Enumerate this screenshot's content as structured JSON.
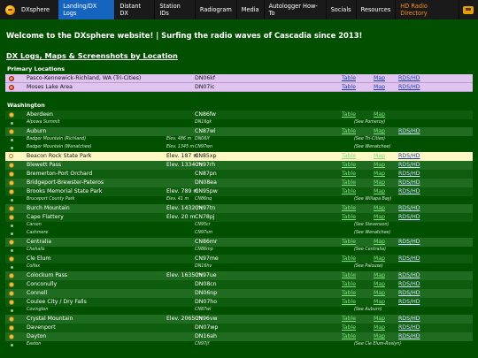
{
  "nav": {
    "brand": "DXsphere",
    "items": [
      {
        "label": "Landing/DX Logs",
        "active": true
      },
      {
        "label": "Distant DX"
      },
      {
        "label": "Station IDs"
      },
      {
        "label": "Radiogram"
      },
      {
        "label": "Media"
      },
      {
        "label": "Autologger How-To"
      },
      {
        "label": "Socials"
      },
      {
        "label": "Resources"
      },
      {
        "label": "HD Radio Directory"
      }
    ]
  },
  "welcome": "Welcome to the DXsphere website! | Surfing the radio waves of Cascadia since 2013!",
  "section_title": "DX Logs, Maps & Screenshots by Location",
  "primary": {
    "label": "Primary Locations",
    "rows": [
      {
        "name": "Pasco-Kennewick-Richland, WA (Tri-Cities)",
        "grid": "DN06kf",
        "table": "Table",
        "map": "Map",
        "rds": "RDS/HD"
      },
      {
        "name": "Moses Lake Area",
        "grid": "DN07ic",
        "table": "Table",
        "map": "Map",
        "rds": "RDS/HD"
      }
    ]
  },
  "washington": {
    "label": "Washington",
    "rows": [
      {
        "type": "big",
        "name": "Aberdeen",
        "elev": "",
        "grid": "CN86fw",
        "table": "Table",
        "map": "Map",
        "rds": ""
      },
      {
        "type": "small",
        "name": "Alpowa Summit",
        "grid": "DN16gk",
        "note": "(See Pomeroy)"
      },
      {
        "type": "big",
        "name": "Auburn",
        "elev": "",
        "grid": "CN87wl",
        "table": "Table",
        "map": "Map",
        "rds": "RDS/HD"
      },
      {
        "type": "small",
        "name": "Badger Mountain (Richland)",
        "elev": "Elev. 486 m",
        "grid": "DN06lf",
        "note": "(See Tri-Cities)"
      },
      {
        "type": "small",
        "name": "Badger Mountain (Wenatchee)",
        "elev": "Elev. 1345 m",
        "grid": "CN97wn",
        "note": "(See Wenatchee)"
      },
      {
        "type": "highlight",
        "name": "Beacon Rock State Park",
        "elev": "Elev. 187 m",
        "grid": "CN85xp",
        "table": "Table",
        "map": "Map",
        "rds": "RDS/HD"
      },
      {
        "type": "big",
        "name": "Blewett Pass",
        "elev": "Elev. 1334 m",
        "grid": "CN97rh",
        "table": "Table",
        "map": "Map",
        "rds": "RDS/HD"
      },
      {
        "type": "big",
        "name": "Bremerton-Port Orchard",
        "elev": "",
        "grid": "CN87pn",
        "table": "Table",
        "map": "Map",
        "rds": "RDS/HD"
      },
      {
        "type": "big",
        "name": "Bridgeport-Brewster-Pateros",
        "elev": "",
        "grid": "DN08ea",
        "table": "Table",
        "map": "Map",
        "rds": "RDS/HD"
      },
      {
        "type": "big",
        "name": "Brooks Memorial State Park",
        "elev": "Elev. 789 m",
        "grid": "CN95pw",
        "table": "Table",
        "map": "Map",
        "rds": "RDS/HD"
      },
      {
        "type": "small",
        "name": "Bruceport County Park",
        "elev": "Elev. 41 m",
        "grid": "CN86nq",
        "note": "(See Willapa Bay)"
      },
      {
        "type": "big",
        "name": "Burch Mountain",
        "elev": "Elev. 1432 m",
        "grid": "CN97tn",
        "table": "Table",
        "map": "Map",
        "rds": "RDS/HD"
      },
      {
        "type": "big",
        "name": "Cape Flattery",
        "elev": "Elev. 20 m",
        "grid": "CN78pj",
        "table": "Table",
        "map": "Map",
        "rds": "RDS/HD"
      },
      {
        "type": "small",
        "name": "Carson",
        "grid": "CN95cr",
        "note": "(See Stevenson)"
      },
      {
        "type": "small",
        "name": "Cashmere",
        "grid": "CN97sm",
        "note": "(See Wenatchee)"
      },
      {
        "type": "big",
        "name": "Centralia",
        "elev": "",
        "grid": "CN86mr",
        "table": "Table",
        "map": "Map",
        "rds": "RDS/HD"
      },
      {
        "type": "small",
        "name": "Chehalis",
        "grid": "CN86mp",
        "note": "(See Centralia)"
      },
      {
        "type": "big",
        "name": "Cle Elum",
        "elev": "",
        "grid": "CN97me",
        "table": "Table",
        "map": "Map",
        "rds": "RDS/HD"
      },
      {
        "type": "small",
        "name": "Colfax",
        "grid": "DN16hv",
        "note": "(See Palouse)"
      },
      {
        "type": "big",
        "name": "Colockum Pass",
        "elev": "Elev. 1635 m",
        "grid": "CN97ue",
        "table": "Table",
        "map": "Map",
        "rds": "RDS/HD"
      },
      {
        "type": "big",
        "name": "Conconully",
        "elev": "",
        "grid": "DN08cn",
        "table": "Table",
        "map": "Map",
        "rds": "RDS/HD"
      },
      {
        "type": "big",
        "name": "Connell",
        "elev": "",
        "grid": "DN06np",
        "table": "Table",
        "map": "Map",
        "rds": "RDS/HD"
      },
      {
        "type": "big",
        "name": "Coulee City / Dry Falls",
        "elev": "",
        "grid": "DN07ho",
        "table": "Table",
        "map": "Map",
        "rds": "RDS/HD"
      },
      {
        "type": "small",
        "name": "Covington",
        "grid": "CN87wl",
        "note": "(See Auburn)"
      },
      {
        "type": "big",
        "name": "Crystal Mountain",
        "elev": "Elev. 2065 m",
        "grid": "CN96vw",
        "table": "Table",
        "map": "Map",
        "rds": "RDS/HD"
      },
      {
        "type": "big",
        "name": "Davenport",
        "elev": "",
        "grid": "DN07wp",
        "table": "Table",
        "map": "Map",
        "rds": "RDS/HD"
      },
      {
        "type": "big",
        "name": "Dayton",
        "elev": "",
        "grid": "DN16ah",
        "table": "Table",
        "map": "Map",
        "rds": "RDS/HD"
      },
      {
        "type": "small",
        "name": "Easton",
        "grid": "CN97jf",
        "note": "(See Cle Elum-Roslyn)"
      }
    ]
  }
}
